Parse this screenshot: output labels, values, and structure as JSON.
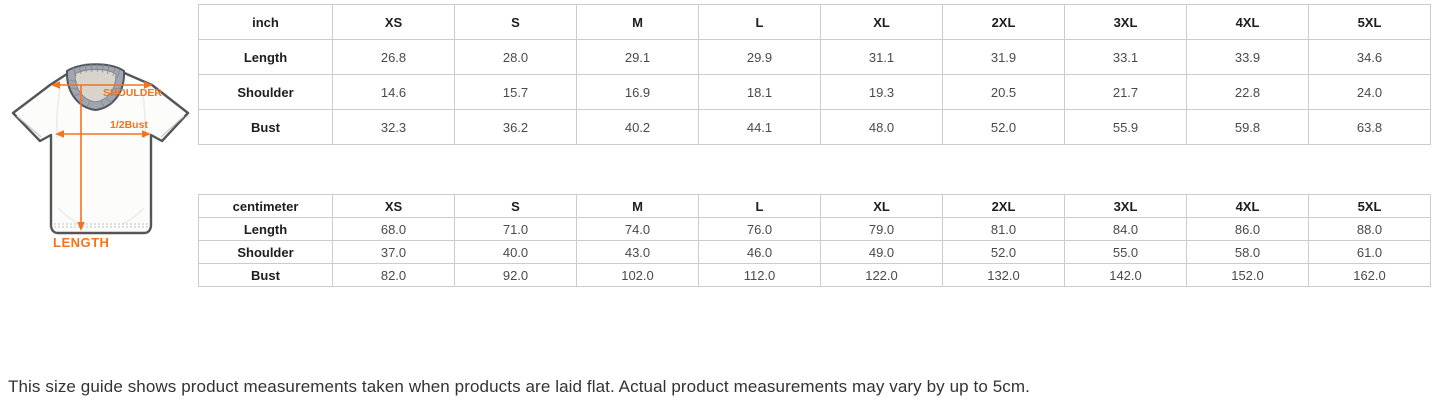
{
  "shirt_diagram": {
    "labels": {
      "shoulder": "SHOULDER",
      "half_bust": "1/2Bust",
      "length": "LENGTH"
    },
    "accent_color": "#f4731d",
    "outline_color": "#54555a",
    "collar_color": "#a0a5b0"
  },
  "tables": [
    {
      "unit_label": "inch",
      "columns": [
        "XS",
        "S",
        "M",
        "L",
        "XL",
        "2XL",
        "3XL",
        "4XL",
        "5XL"
      ],
      "rows": [
        {
          "label": "Length",
          "values": [
            "26.8",
            "28.0",
            "29.1",
            "29.9",
            "31.1",
            "31.9",
            "33.1",
            "33.9",
            "34.6"
          ]
        },
        {
          "label": "Shoulder",
          "values": [
            "14.6",
            "15.7",
            "16.9",
            "18.1",
            "19.3",
            "20.5",
            "21.7",
            "22.8",
            "24.0"
          ]
        },
        {
          "label": "Bust",
          "values": [
            "32.3",
            "36.2",
            "40.2",
            "44.1",
            "48.0",
            "52.0",
            "55.9",
            "59.8",
            "63.8"
          ]
        }
      ]
    },
    {
      "unit_label": "centimeter",
      "columns": [
        "XS",
        "S",
        "M",
        "L",
        "XL",
        "2XL",
        "3XL",
        "4XL",
        "5XL"
      ],
      "rows": [
        {
          "label": "Length",
          "values": [
            "68.0",
            "71.0",
            "74.0",
            "76.0",
            "79.0",
            "81.0",
            "84.0",
            "86.0",
            "88.0"
          ]
        },
        {
          "label": "Shoulder",
          "values": [
            "37.0",
            "40.0",
            "43.0",
            "46.0",
            "49.0",
            "52.0",
            "55.0",
            "58.0",
            "61.0"
          ]
        },
        {
          "label": "Bust",
          "values": [
            "82.0",
            "92.0",
            "102.0",
            "112.0",
            "122.0",
            "132.0",
            "142.0",
            "152.0",
            "162.0"
          ]
        }
      ]
    }
  ],
  "note": "This size guide shows product measurements taken when products are laid flat. Actual product measurements may vary by up to 5cm."
}
